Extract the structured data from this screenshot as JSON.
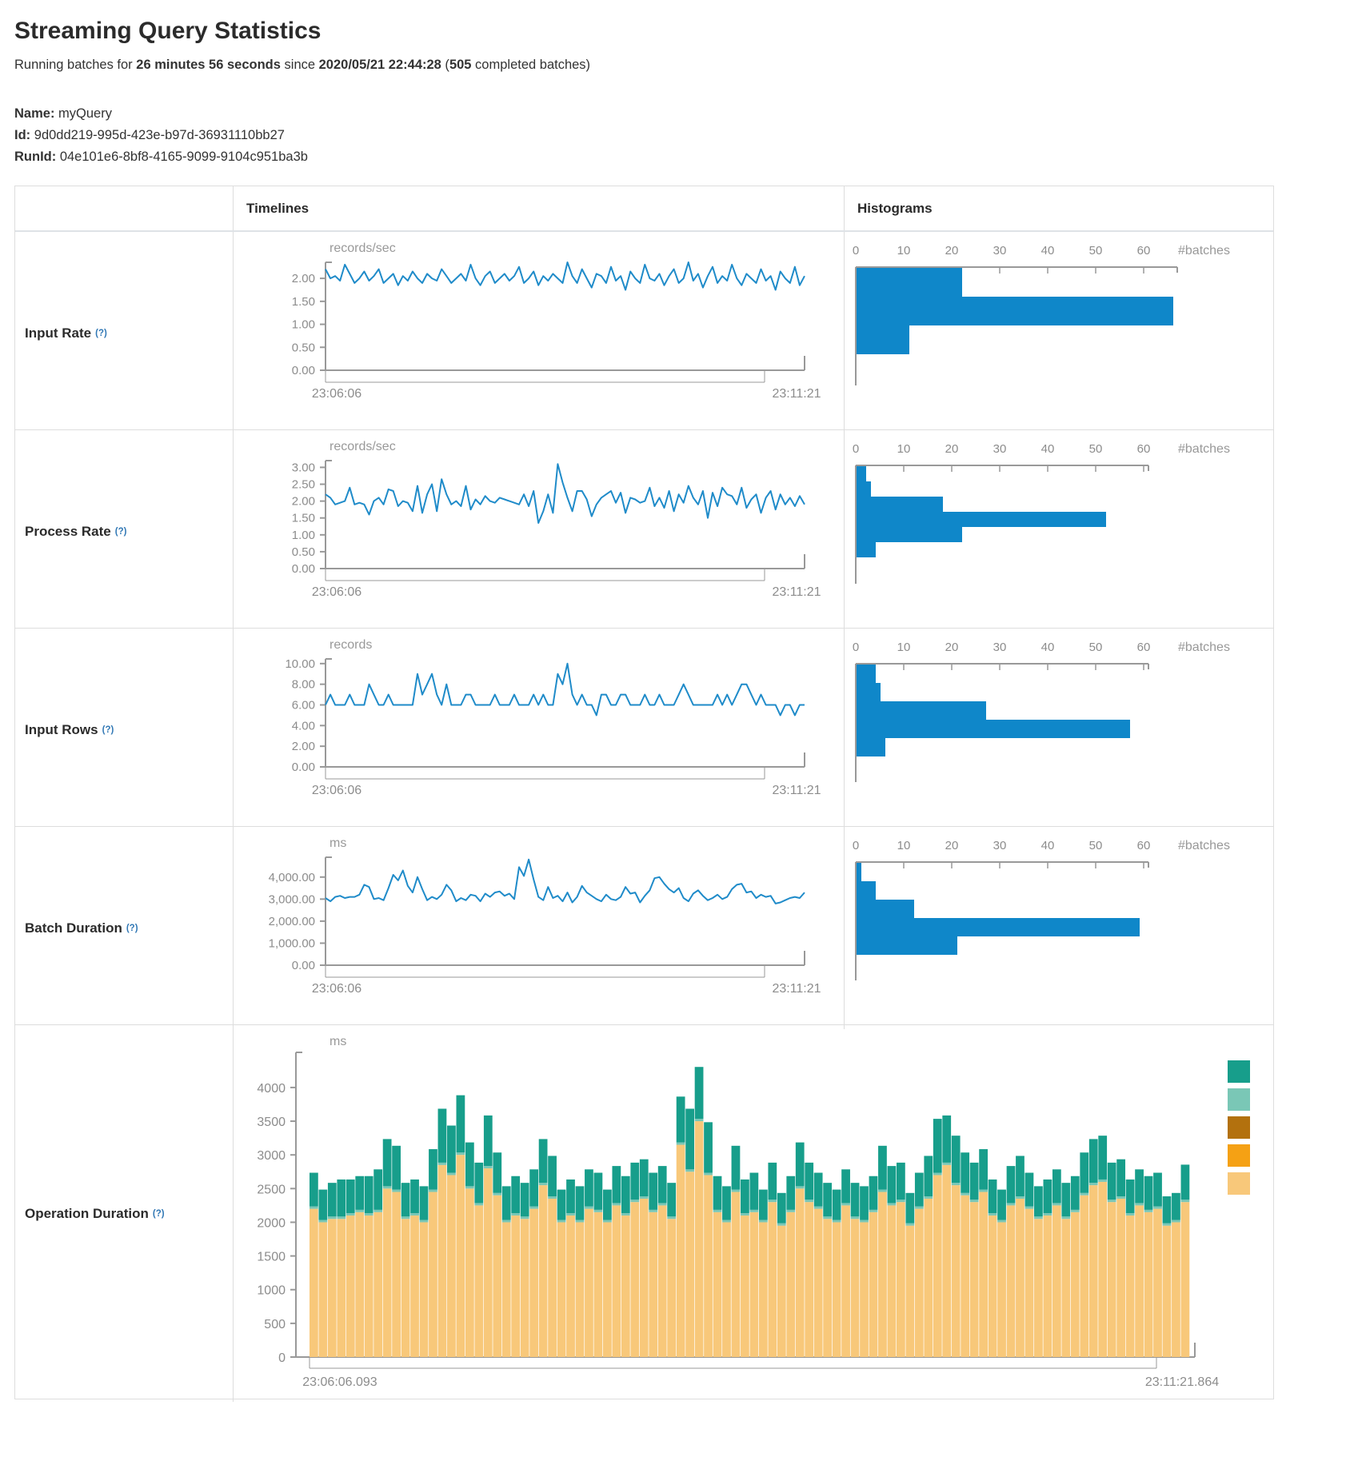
{
  "page": {
    "title": "Streaming Query Statistics",
    "subtitle": {
      "prefix": "Running batches for ",
      "duration": "26 minutes 56 seconds",
      "since": " since ",
      "start_time": "2020/05/21 22:44:28",
      "paren_open": " (",
      "completed_batches": "505",
      "suffix": " completed batches)"
    },
    "query_info": {
      "name_label": "Name:",
      "name_value": "myQuery",
      "id_label": "Id:",
      "id_value": "9d0dd219-995d-423e-b97d-36931110bb27",
      "runid_label": "RunId:",
      "runid_value": "04e101e6-8bf8-4165-9099-9104c951ba3b"
    }
  },
  "table": {
    "columns": {
      "timelines": "Timelines",
      "histograms": "Histograms"
    },
    "row_labels": [
      {
        "label": "Input Rate",
        "help": "(?)"
      },
      {
        "label": "Process Rate",
        "help": "(?)"
      },
      {
        "label": "Input Rows",
        "help": "(?)"
      },
      {
        "label": "Batch Duration",
        "help": "(?)"
      },
      {
        "label": "Operation Duration",
        "help": "(?)"
      }
    ]
  },
  "colors": {
    "line": "#1f8bc9",
    "hist_bar": "#0f87c9",
    "axis": "#999999",
    "tick_text": "#8c8c8c",
    "help": "#3178b5"
  },
  "chart_data": [
    {
      "row": "Input Rate",
      "type": "line",
      "unit": "records/sec",
      "x_start_label": "23:06:06",
      "x_end_label": "23:11:21",
      "ymax": 2.35,
      "yticks": [
        {
          "label": "2.00",
          "value": 2
        },
        {
          "label": "1.50",
          "value": 1.5
        },
        {
          "label": "1.00",
          "value": 1
        },
        {
          "label": "0.50",
          "value": 0.5
        },
        {
          "label": "0.00",
          "value": 0
        }
      ],
      "values": [
        2.2,
        2.0,
        2.05,
        1.95,
        2.3,
        2.1,
        1.9,
        2.0,
        2.15,
        1.95,
        2.05,
        2.2,
        1.9,
        2.0,
        2.1,
        1.85,
        2.05,
        1.95,
        2.15,
        2.0,
        1.9,
        2.1,
        2.0,
        1.95,
        2.2,
        2.05,
        1.9,
        2.0,
        2.1,
        1.95,
        2.3,
        2.0,
        1.85,
        2.05,
        2.15,
        1.9,
        2.0,
        2.1,
        1.95,
        2.05,
        2.25,
        1.9,
        2.0,
        2.15,
        1.85,
        2.05,
        1.95,
        2.1,
        2.0,
        1.9,
        2.35,
        2.05,
        1.9,
        2.2,
        2.0,
        1.8,
        2.1,
        2.05,
        1.9,
        2.25,
        1.95,
        2.05,
        1.75,
        2.15,
        2.0,
        1.9,
        2.3,
        2.0,
        1.95,
        2.1,
        1.85,
        2.05,
        2.2,
        1.9,
        2.0,
        2.35,
        1.95,
        2.1,
        1.8,
        2.05,
        2.25,
        1.9,
        2.05,
        1.95,
        2.3,
        2.0,
        1.85,
        2.1,
        2.0,
        1.9,
        2.2,
        1.95,
        2.05,
        1.75,
        2.15,
        2.0,
        1.9,
        2.25,
        1.85,
        2.05
      ],
      "histogram": {
        "type": "bar-horizontal",
        "axis_label": "#batches",
        "ticks": [
          0,
          10,
          20,
          30,
          40,
          50,
          60
        ],
        "bars": [
          22,
          66,
          11
        ]
      }
    },
    {
      "row": "Process Rate",
      "type": "line",
      "unit": "records/sec",
      "x_start_label": "23:06:06",
      "x_end_label": "23:11:21",
      "ymax": 3.2,
      "yticks": [
        {
          "label": "3.00",
          "value": 3
        },
        {
          "label": "2.50",
          "value": 2.5
        },
        {
          "label": "2.00",
          "value": 2
        },
        {
          "label": "1.50",
          "value": 1.5
        },
        {
          "label": "1.00",
          "value": 1
        },
        {
          "label": "0.50",
          "value": 0.5
        },
        {
          "label": "0.00",
          "value": 0
        }
      ],
      "values": [
        2.2,
        2.1,
        1.9,
        1.95,
        2.0,
        2.4,
        1.9,
        1.95,
        1.9,
        1.6,
        2.0,
        2.1,
        1.9,
        2.35,
        2.3,
        1.85,
        2.0,
        1.95,
        1.7,
        2.45,
        1.65,
        2.2,
        2.5,
        1.7,
        2.65,
        2.2,
        1.9,
        2.0,
        1.85,
        2.45,
        1.75,
        2.05,
        1.9,
        2.15,
        2.0,
        1.95,
        2.1,
        2.05,
        2.0,
        1.95,
        1.9,
        2.2,
        1.85,
        2.3,
        1.35,
        1.7,
        2.2,
        1.65,
        3.1,
        2.55,
        2.1,
        1.7,
        2.3,
        2.3,
        2.05,
        1.55,
        1.9,
        2.1,
        2.2,
        2.3,
        1.95,
        2.25,
        1.65,
        2.1,
        2.05,
        1.95,
        2.0,
        2.4,
        1.85,
        2.1,
        1.8,
        2.3,
        1.7,
        2.2,
        1.95,
        2.45,
        2.1,
        1.9,
        2.3,
        1.5,
        2.25,
        1.85,
        2.4,
        2.2,
        2.15,
        1.9,
        2.4,
        1.8,
        2.05,
        2.2,
        1.65,
        2.1,
        2.3,
        1.75,
        2.2,
        1.9,
        2.1,
        1.85,
        2.15,
        1.9
      ],
      "histogram": {
        "type": "bar-horizontal",
        "axis_label": "#batches",
        "ticks": [
          0,
          10,
          20,
          30,
          40,
          50,
          60
        ],
        "bars": [
          2,
          3,
          18,
          52,
          22,
          4
        ]
      }
    },
    {
      "row": "Input Rows",
      "type": "line",
      "unit": "records",
      "x_start_label": "23:06:06",
      "x_end_label": "23:11:21",
      "ymax": 10.45,
      "yticks": [
        {
          "label": "10.00",
          "value": 10
        },
        {
          "label": "8.00",
          "value": 8
        },
        {
          "label": "6.00",
          "value": 6
        },
        {
          "label": "4.00",
          "value": 4
        },
        {
          "label": "2.00",
          "value": 2
        },
        {
          "label": "0.00",
          "value": 0
        }
      ],
      "values": [
        6,
        7,
        6,
        6,
        6,
        7,
        6,
        6,
        6,
        8,
        7,
        6,
        6,
        7,
        6,
        6,
        6,
        6,
        6,
        9,
        7,
        8,
        9,
        7,
        6,
        8,
        6,
        6,
        6,
        7,
        7,
        6,
        6,
        6,
        6,
        7,
        6,
        6,
        6,
        7,
        6,
        6,
        6,
        7,
        6,
        7,
        6,
        6,
        9,
        8,
        10,
        7,
        6,
        7,
        6,
        6,
        5,
        7,
        7,
        6,
        6,
        7,
        7,
        6,
        6,
        6,
        7,
        6,
        6,
        7,
        6,
        6,
        6,
        7,
        8,
        7,
        6,
        6,
        6,
        6,
        6,
        7,
        6,
        7,
        6,
        7,
        8,
        8,
        7,
        6,
        7,
        6,
        6,
        6,
        5,
        6,
        6,
        5,
        6,
        6
      ],
      "histogram": {
        "type": "bar-horizontal",
        "axis_label": "#batches",
        "ticks": [
          0,
          10,
          20,
          30,
          40,
          50,
          60
        ],
        "bars": [
          4,
          5,
          27,
          57,
          6
        ]
      }
    },
    {
      "row": "Batch Duration",
      "type": "line",
      "unit": "ms",
      "x_start_label": "23:06:06",
      "x_end_label": "23:11:21",
      "ymax": 4900,
      "yticks": [
        {
          "label": "4,000.00",
          "value": 4000
        },
        {
          "label": "3,000.00",
          "value": 3000
        },
        {
          "label": "2,000.00",
          "value": 2000
        },
        {
          "label": "1,000.00",
          "value": 1000
        },
        {
          "label": "0.00",
          "value": 0
        }
      ],
      "values": [
        3050,
        2900,
        3100,
        3150,
        3050,
        3100,
        3100,
        3200,
        3650,
        3550,
        3000,
        3050,
        2950,
        3500,
        4100,
        3850,
        4300,
        3600,
        3300,
        4000,
        3450,
        2950,
        3100,
        3000,
        3200,
        3650,
        3400,
        2900,
        3050,
        2950,
        3200,
        3150,
        2900,
        3250,
        3100,
        3300,
        3350,
        3150,
        3250,
        3000,
        4450,
        4050,
        4800,
        3900,
        3100,
        2950,
        3550,
        3050,
        3150,
        2900,
        3300,
        2850,
        3100,
        3600,
        3300,
        3150,
        3000,
        2900,
        3200,
        3000,
        2950,
        3100,
        3550,
        3250,
        3300,
        2850,
        3150,
        3400,
        3950,
        4000,
        3700,
        3450,
        3300,
        3500,
        3050,
        2900,
        3250,
        3400,
        3150,
        2950,
        3050,
        3200,
        3000,
        3100,
        3450,
        3650,
        3700,
        3300,
        3350,
        3050,
        3200,
        3100,
        3150,
        2800,
        2850,
        2950,
        3050,
        3100,
        3050,
        3300
      ],
      "histogram": {
        "type": "bar-horizontal",
        "axis_label": "#batches",
        "ticks": [
          0,
          10,
          20,
          30,
          40,
          50,
          60
        ],
        "bars": [
          1,
          4,
          12,
          59,
          21
        ]
      }
    },
    {
      "row": "Operation Duration",
      "type": "stacked-bar",
      "unit": "ms",
      "x_start_label": "23:06:06.093",
      "x_end_label": "23:11:21.864",
      "ymax": 4450,
      "yticks": [
        {
          "label": "4000",
          "value": 4000
        },
        {
          "label": "3500",
          "value": 3500
        },
        {
          "label": "3000",
          "value": 3000
        },
        {
          "label": "2500",
          "value": 2500
        },
        {
          "label": "2000",
          "value": 2000
        },
        {
          "label": "1500",
          "value": 1500
        },
        {
          "label": "1000",
          "value": 1000
        },
        {
          "label": "500",
          "value": 500
        },
        {
          "label": "0",
          "value": 0
        }
      ],
      "legend_colors": [
        "#179e8b",
        "#7ac7b6",
        "#b3710e",
        "#f5a114",
        "#f8c87a"
      ],
      "series": [
        {
          "name": "bottom-segment-tan",
          "color": "#f8c87a",
          "values": [
            2200,
            2000,
            2050,
            2050,
            2100,
            2150,
            2100,
            2150,
            2500,
            2450,
            2050,
            2100,
            2000,
            2450,
            2850,
            2700,
            3000,
            2500,
            2250,
            2800,
            2400,
            2000,
            2100,
            2050,
            2200,
            2550,
            2350,
            2000,
            2100,
            2000,
            2200,
            2150,
            2000,
            2250,
            2100,
            2300,
            2350,
            2150,
            2250,
            2050,
            3150,
            2750,
            3500,
            2700,
            2150,
            2000,
            2450,
            2100,
            2150,
            2000,
            2300,
            1950,
            2150,
            2500,
            2300,
            2200,
            2050,
            2000,
            2250,
            2050,
            2000,
            2150,
            2450,
            2250,
            2300,
            1950,
            2200,
            2350,
            2700,
            2850,
            2550,
            2400,
            2300,
            2450,
            2100,
            2000,
            2250,
            2350,
            2200,
            2050,
            2100,
            2250,
            2050,
            2150,
            2400,
            2550,
            2600,
            2300,
            2350,
            2100,
            2250,
            2150,
            2200,
            1950,
            2000,
            2300
          ]
        },
        {
          "name": "middle-segment-light-teal",
          "color": "#7ac7b6",
          "constant": 35
        },
        {
          "name": "top-segment-teal",
          "color": "#179e8b",
          "values": [
            500,
            450,
            500,
            550,
            500,
            500,
            550,
            600,
            700,
            650,
            500,
            500,
            500,
            600,
            800,
            700,
            850,
            650,
            600,
            750,
            600,
            500,
            550,
            500,
            550,
            650,
            600,
            450,
            500,
            500,
            550,
            550,
            450,
            550,
            550,
            550,
            550,
            550,
            550,
            500,
            680,
            900,
            770,
            750,
            500,
            500,
            650,
            500,
            550,
            450,
            550,
            450,
            500,
            650,
            550,
            500,
            500,
            450,
            500,
            500,
            500,
            500,
            650,
            550,
            550,
            450,
            500,
            600,
            800,
            700,
            700,
            600,
            550,
            600,
            500,
            450,
            550,
            600,
            500,
            450,
            500,
            500,
            500,
            500,
            600,
            650,
            650,
            550,
            550,
            500,
            500,
            500,
            500,
            400,
            400,
            520
          ]
        }
      ]
    }
  ]
}
